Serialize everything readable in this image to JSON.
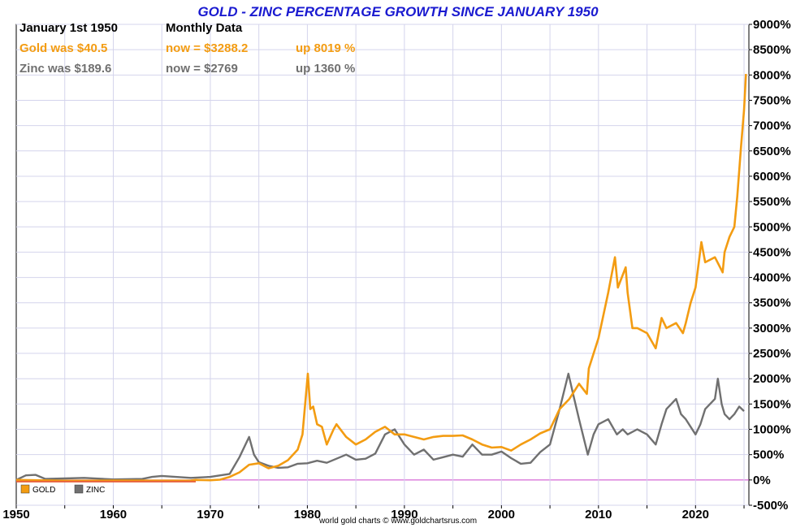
{
  "chart_data": {
    "type": "line",
    "title": "GOLD - ZINC PERCENTAGE GROWTH SINCE JANUARY 1950",
    "annotations": {
      "start_label": "January 1st 1950",
      "frequency_label": "Monthly Data",
      "gold_was": "Gold was $40.5",
      "gold_now": "now = $3288.2",
      "gold_up": "up 8019 %",
      "zinc_was": "Zinc was $189.6",
      "zinc_now": "now = $2769",
      "zinc_up": "up 1360 %"
    },
    "credit": "world gold charts © www.goldchartsrus.com",
    "xlim": [
      1950,
      2025.5
    ],
    "ylim": [
      -500,
      9000
    ],
    "x_ticks": [
      1950,
      1960,
      1970,
      1980,
      1990,
      2000,
      2010,
      2020
    ],
    "x_tick_labels": [
      "1950",
      "1960",
      "1970",
      "1980",
      "1990",
      "2000",
      "2010",
      "2020"
    ],
    "y_ticks": [
      -500,
      0,
      500,
      1000,
      1500,
      2000,
      2500,
      3000,
      3500,
      4000,
      4500,
      5000,
      5500,
      6000,
      6500,
      7000,
      7500,
      8000,
      8500,
      9000
    ],
    "y_tick_labels": [
      "-500%",
      "0%",
      "500%",
      "1000%",
      "1500%",
      "2000%",
      "2500%",
      "3000%",
      "3500%",
      "4000%",
      "4500%",
      "5000%",
      "5500%",
      "6000%",
      "6500%",
      "7000%",
      "7500%",
      "8000%",
      "8500%",
      "9000%"
    ],
    "grid": true,
    "legend_position": "bottom-left",
    "series": [
      {
        "name": "GOLD",
        "color": "#f39c12",
        "points": [
          [
            1950,
            0
          ],
          [
            1955,
            -15
          ],
          [
            1960,
            -12
          ],
          [
            1965,
            -14
          ],
          [
            1968,
            -10
          ],
          [
            1968.5,
            0
          ],
          [
            1970,
            -5
          ],
          [
            1971,
            5
          ],
          [
            1972,
            60
          ],
          [
            1973,
            150
          ],
          [
            1974,
            300
          ],
          [
            1975,
            330
          ],
          [
            1976,
            230
          ],
          [
            1977,
            280
          ],
          [
            1978,
            390
          ],
          [
            1979,
            600
          ],
          [
            1979.5,
            900
          ],
          [
            1980.05,
            2100
          ],
          [
            1980.3,
            1400
          ],
          [
            1980.6,
            1450
          ],
          [
            1981,
            1100
          ],
          [
            1981.5,
            1050
          ],
          [
            1982,
            700
          ],
          [
            1982.7,
            1000
          ],
          [
            1983,
            1100
          ],
          [
            1984,
            850
          ],
          [
            1985,
            700
          ],
          [
            1986,
            800
          ],
          [
            1987,
            950
          ],
          [
            1988,
            1050
          ],
          [
            1989,
            900
          ],
          [
            1990,
            900
          ],
          [
            1991,
            850
          ],
          [
            1992,
            800
          ],
          [
            1993,
            850
          ],
          [
            1994,
            870
          ],
          [
            1995,
            870
          ],
          [
            1996,
            880
          ],
          [
            1997,
            800
          ],
          [
            1998,
            700
          ],
          [
            1999,
            640
          ],
          [
            2000,
            650
          ],
          [
            2001,
            580
          ],
          [
            2002,
            700
          ],
          [
            2003,
            800
          ],
          [
            2004,
            920
          ],
          [
            2005,
            1000
          ],
          [
            2006,
            1400
          ],
          [
            2007,
            1600
          ],
          [
            2008,
            1900
          ],
          [
            2008.8,
            1700
          ],
          [
            2009,
            2200
          ],
          [
            2010,
            2800
          ],
          [
            2011,
            3700
          ],
          [
            2011.7,
            4400
          ],
          [
            2012,
            3800
          ],
          [
            2012.8,
            4200
          ],
          [
            2013,
            3700
          ],
          [
            2013.5,
            3000
          ],
          [
            2014,
            3000
          ],
          [
            2015,
            2900
          ],
          [
            2015.9,
            2600
          ],
          [
            2016.5,
            3200
          ],
          [
            2017,
            3000
          ],
          [
            2018,
            3100
          ],
          [
            2018.7,
            2900
          ],
          [
            2019,
            3100
          ],
          [
            2019.5,
            3500
          ],
          [
            2020,
            3800
          ],
          [
            2020.6,
            4700
          ],
          [
            2021,
            4300
          ],
          [
            2022,
            4400
          ],
          [
            2022.8,
            4100
          ],
          [
            2023,
            4500
          ],
          [
            2023.5,
            4800
          ],
          [
            2024,
            5000
          ],
          [
            2024.3,
            5600
          ],
          [
            2024.7,
            6600
          ],
          [
            2025,
            7300
          ],
          [
            2025.2,
            8019
          ]
        ]
      },
      {
        "name": "ZINC",
        "color": "#707070",
        "points": [
          [
            1950,
            0
          ],
          [
            1951,
            90
          ],
          [
            1952,
            100
          ],
          [
            1953,
            20
          ],
          [
            1955,
            30
          ],
          [
            1957,
            40
          ],
          [
            1960,
            10
          ],
          [
            1963,
            20
          ],
          [
            1964,
            60
          ],
          [
            1965,
            80
          ],
          [
            1968,
            40
          ],
          [
            1970,
            60
          ],
          [
            1972,
            120
          ],
          [
            1973,
            450
          ],
          [
            1974,
            850
          ],
          [
            1974.5,
            500
          ],
          [
            1975,
            350
          ],
          [
            1976,
            280
          ],
          [
            1977,
            240
          ],
          [
            1978,
            250
          ],
          [
            1979,
            320
          ],
          [
            1980,
            330
          ],
          [
            1981,
            380
          ],
          [
            1982,
            340
          ],
          [
            1983,
            420
          ],
          [
            1984,
            500
          ],
          [
            1985,
            400
          ],
          [
            1986,
            420
          ],
          [
            1987,
            520
          ],
          [
            1988,
            900
          ],
          [
            1989,
            1000
          ],
          [
            1990,
            700
          ],
          [
            1991,
            500
          ],
          [
            1992,
            600
          ],
          [
            1993,
            400
          ],
          [
            1994,
            450
          ],
          [
            1995,
            500
          ],
          [
            1996,
            460
          ],
          [
            1997,
            700
          ],
          [
            1998,
            500
          ],
          [
            1999,
            500
          ],
          [
            2000,
            560
          ],
          [
            2001,
            430
          ],
          [
            2002,
            320
          ],
          [
            2003,
            340
          ],
          [
            2004,
            550
          ],
          [
            2005,
            700
          ],
          [
            2006,
            1400
          ],
          [
            2006.9,
            2100
          ],
          [
            2007.5,
            1600
          ],
          [
            2008,
            1200
          ],
          [
            2008.9,
            500
          ],
          [
            2009.5,
            900
          ],
          [
            2010,
            1100
          ],
          [
            2011,
            1200
          ],
          [
            2011.9,
            900
          ],
          [
            2012.5,
            1000
          ],
          [
            2013,
            900
          ],
          [
            2014,
            1000
          ],
          [
            2015,
            900
          ],
          [
            2015.9,
            700
          ],
          [
            2016.5,
            1100
          ],
          [
            2017,
            1400
          ],
          [
            2018,
            1600
          ],
          [
            2018.5,
            1300
          ],
          [
            2019,
            1200
          ],
          [
            2020,
            900
          ],
          [
            2020.5,
            1100
          ],
          [
            2021,
            1400
          ],
          [
            2022,
            1600
          ],
          [
            2022.3,
            2000
          ],
          [
            2022.7,
            1500
          ],
          [
            2023,
            1300
          ],
          [
            2023.5,
            1200
          ],
          [
            2024,
            1300
          ],
          [
            2024.5,
            1450
          ],
          [
            2025,
            1360
          ]
        ]
      }
    ]
  }
}
